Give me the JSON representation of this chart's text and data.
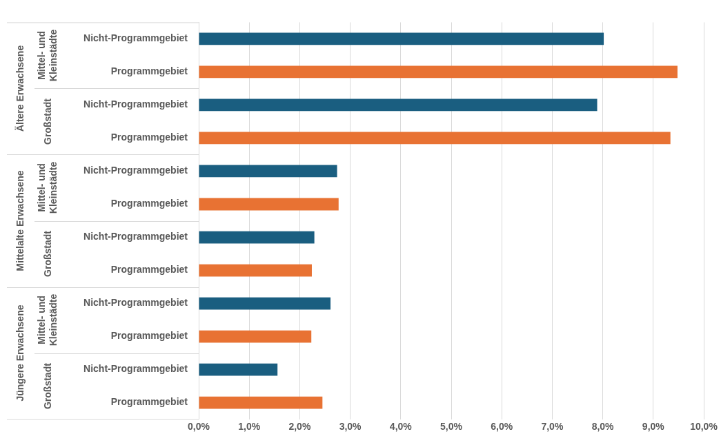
{
  "chart_data": {
    "type": "bar",
    "orientation": "horizontal",
    "categories": [
      [
        "Ältere Erwachsene",
        "Mittel- und Kleinstädte",
        "Nicht-Programmgebiet"
      ],
      [
        null,
        null,
        "Programmgebiet"
      ],
      [
        null,
        "Großstadt",
        "Nicht-Programmgebiet"
      ],
      [
        null,
        null,
        "Programmgebiet"
      ],
      [
        "Mittelalte Erwachsene",
        "Mittel- und Kleinstädte",
        "Nicht-Programmgebiet"
      ],
      [
        null,
        null,
        "Programmgebiet"
      ],
      [
        null,
        "Großstadt",
        "Nicht-Programmgebiet"
      ],
      [
        null,
        null,
        "Programmgebiet"
      ],
      [
        "Jüngere Erwachsene",
        "Mittel- und Kleinstädte",
        "Nicht-Programmgebiet"
      ],
      [
        null,
        null,
        "Programmgebiet"
      ],
      [
        null,
        "Großstadt",
        "Nicht-Programmgebiet"
      ],
      [
        null,
        null,
        "Programmgebiet"
      ]
    ],
    "values": [
      8.02,
      9.48,
      7.89,
      9.34,
      2.74,
      2.77,
      2.29,
      2.24,
      2.61,
      2.23,
      1.56,
      2.45
    ],
    "colors": [
      "#1a5e80",
      "#e87233",
      "#1a5e80",
      "#e87233",
      "#1a5e80",
      "#e87233",
      "#1a5e80",
      "#e87233",
      "#1a5e80",
      "#e87233",
      "#1a5e80",
      "#e87233"
    ],
    "xlim": [
      0,
      10
    ],
    "xticks": [
      {
        "value": 0,
        "label": "0,0%"
      },
      {
        "value": 1,
        "label": "1,0%"
      },
      {
        "value": 2,
        "label": "2,0%"
      },
      {
        "value": 3,
        "label": "3,0%"
      },
      {
        "value": 4,
        "label": "4,0%"
      },
      {
        "value": 5,
        "label": "5,0%"
      },
      {
        "value": 6,
        "label": "6,0%"
      },
      {
        "value": 7,
        "label": "7,0%"
      },
      {
        "value": 8,
        "label": "8,0%"
      },
      {
        "value": 9,
        "label": "9,0%"
      },
      {
        "value": 10,
        "label": "10,0%"
      }
    ],
    "grid": "x",
    "legend": false
  }
}
